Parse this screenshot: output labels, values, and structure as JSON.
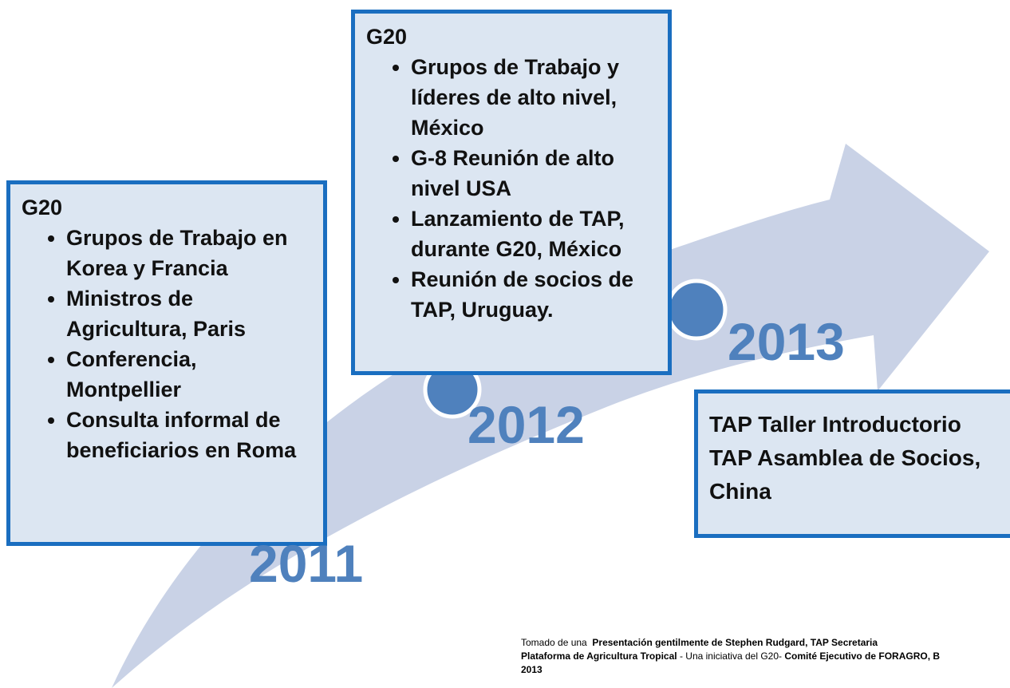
{
  "milestones": [
    {
      "year": "2011",
      "box": {
        "heading": "G20",
        "items": [
          "Grupos de Trabajo en Korea y Francia",
          "Ministros de Agricultura, Paris",
          "Conferencia, Montpellier",
          "Consulta informal de beneficiarios  en Roma"
        ]
      }
    },
    {
      "year": "2012",
      "box": {
        "heading": "G20",
        "items": [
          "Grupos de Trabajo y líderes de alto nivel, México",
          "G-8 Reunión de alto nivel USA",
          "Lanzamiento de TAP, durante G20, México",
          "Reunión de socios de TAP, Uruguay."
        ]
      }
    },
    {
      "year": "2013",
      "box": {
        "lines": [
          "TAP Taller Introductorio",
          "TAP Asamblea de Socios, China"
        ]
      }
    }
  ],
  "footer": [
    [
      {
        "text": "Tomado de una  ",
        "bold": false
      },
      {
        "text": "Presentación gentilmente de Stephen Rudgard, TAP Secretaria",
        "bold": true
      }
    ],
    [
      {
        "text": "Plataforma de Agricultura Tropical",
        "bold": true
      },
      {
        "text": " - Una iniciativa del G20- ",
        "bold": false
      },
      {
        "text": "Comité Ejecutivo de FORAGRO, B",
        "bold": true
      }
    ],
    [
      {
        "text": "2013",
        "bold": true
      }
    ]
  ]
}
